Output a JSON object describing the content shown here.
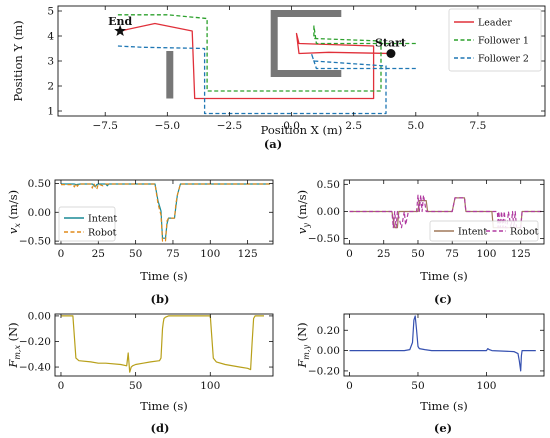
{
  "chart_data": [
    {
      "id": "a",
      "type": "line",
      "caption": "(a)",
      "xlabel": "Position X (m)",
      "ylabel": "Position Y (m)",
      "xlim": [
        -9.4,
        10.2
      ],
      "ylim": [
        0.8,
        5.2
      ],
      "xticks": [
        -7.5,
        -5.0,
        -2.5,
        0.0,
        2.5,
        5.0,
        7.5
      ],
      "xtick_labels": [
        "−7.5",
        "−5.0",
        "−2.5",
        "0.0",
        "2.5",
        "5.0",
        "7.5"
      ],
      "yticks": [
        1,
        2,
        3,
        4,
        5
      ],
      "ytick_labels": [
        "1",
        "2",
        "3",
        "4",
        "5"
      ],
      "legend": {
        "position": "top-right"
      },
      "series": [
        {
          "name": "Leader",
          "color": "#e0303a",
          "dash": "solid",
          "points": [
            [
              4.0,
              3.3
            ],
            [
              1.5,
              3.35
            ],
            [
              0.3,
              3.3
            ],
            [
              0.2,
              4.1
            ],
            [
              0.3,
              3.7
            ],
            [
              3.3,
              3.6
            ],
            [
              3.3,
              1.5
            ],
            [
              -3.9,
              1.5
            ],
            [
              -4.0,
              4.2
            ],
            [
              -5.5,
              4.5
            ],
            [
              -6.9,
              4.2
            ]
          ]
        },
        {
          "name": "Follower 1",
          "color": "#2ca02c",
          "dash": "dashed",
          "points": [
            [
              5.0,
              3.7
            ],
            [
              1.0,
              3.7
            ],
            [
              0.9,
              4.4
            ],
            [
              0.9,
              3.9
            ],
            [
              3.6,
              3.8
            ],
            [
              3.6,
              1.8
            ],
            [
              -3.4,
              1.8
            ],
            [
              -3.4,
              4.7
            ],
            [
              -5.0,
              4.85
            ],
            [
              -7.0,
              4.85
            ]
          ]
        },
        {
          "name": "Follower 2",
          "color": "#1f77b4",
          "dash": "dashed",
          "points": [
            [
              5.0,
              2.7
            ],
            [
              1.0,
              2.7
            ],
            [
              0.8,
              3.3
            ],
            [
              0.9,
              3.0
            ],
            [
              3.8,
              2.8
            ],
            [
              3.8,
              0.9
            ],
            [
              -3.5,
              0.9
            ],
            [
              -3.5,
              3.5
            ],
            [
              -6.0,
              3.55
            ],
            [
              -7.0,
              3.6
            ]
          ]
        }
      ],
      "obstacles": [
        {
          "color": "#777777",
          "points": [
            [
              -4.9,
              1.5
            ],
            [
              -4.9,
              3.4
            ]
          ]
        },
        {
          "color": "#777777",
          "points": [
            [
              2.0,
              4.9
            ],
            [
              -0.7,
              4.9
            ],
            [
              -0.7,
              2.5
            ],
            [
              2.0,
              2.5
            ]
          ]
        }
      ],
      "annotations": [
        {
          "text": "End",
          "x": -6.9,
          "y": 4.2,
          "marker": "star"
        },
        {
          "text": "Start",
          "x": 4.0,
          "y": 3.3,
          "marker": "circle"
        }
      ]
    },
    {
      "id": "b",
      "type": "line",
      "caption": "(b)",
      "xlabel": "Time (s)",
      "ylabel": "v_x (m/s)",
      "xlim": [
        -4,
        142
      ],
      "ylim": [
        -0.55,
        0.56
      ],
      "xticks": [
        0,
        25,
        50,
        75,
        100,
        125
      ],
      "yticks": [
        -0.5,
        0.0,
        0.5
      ],
      "ytick_labels": [
        "−0.50",
        "0.00",
        "0.50"
      ],
      "legend": {
        "position": "bottom-left"
      },
      "series": [
        {
          "name": "Intent",
          "color": "#1a8a95",
          "dash": "solid",
          "points": [
            [
              0,
              0.49
            ],
            [
              9,
              0.49
            ],
            [
              10,
              0.48
            ],
            [
              13,
              0.49
            ],
            [
              21,
              0.49
            ],
            [
              22,
              0.47
            ],
            [
              23,
              0.44
            ],
            [
              24,
              0.48
            ],
            [
              25,
              0.49
            ],
            [
              30,
              0.49
            ],
            [
              31,
              0.46
            ],
            [
              32,
              0.49
            ],
            [
              63,
              0.49
            ],
            [
              65,
              0.2
            ],
            [
              67,
              0.02
            ],
            [
              68,
              -0.45
            ],
            [
              70,
              -0.45
            ],
            [
              71,
              -0.2
            ],
            [
              72,
              -0.1
            ],
            [
              75,
              -0.1
            ],
            [
              76,
              -0.1
            ],
            [
              77,
              0.1
            ],
            [
              78,
              0.3
            ],
            [
              80,
              0.49
            ],
            [
              140,
              0.49
            ]
          ]
        },
        {
          "name": "Robot",
          "color": "#e08a1a",
          "dash": "dashed",
          "points": [
            [
              0,
              0.48
            ],
            [
              8,
              0.48
            ],
            [
              9,
              0.44
            ],
            [
              10,
              0.5
            ],
            [
              11,
              0.45
            ],
            [
              12,
              0.49
            ],
            [
              20,
              0.49
            ],
            [
              21,
              0.42
            ],
            [
              22,
              0.5
            ],
            [
              24,
              0.4
            ],
            [
              25,
              0.49
            ],
            [
              28,
              0.46
            ],
            [
              30,
              0.49
            ],
            [
              63,
              0.49
            ],
            [
              65,
              0.15
            ],
            [
              67,
              -0.05
            ],
            [
              68,
              -0.5
            ],
            [
              70,
              -0.5
            ],
            [
              71,
              -0.15
            ],
            [
              72,
              -0.1
            ],
            [
              76,
              -0.1
            ],
            [
              77,
              0.15
            ],
            [
              78,
              0.3
            ],
            [
              80,
              0.49
            ],
            [
              140,
              0.49
            ]
          ]
        }
      ]
    },
    {
      "id": "c",
      "type": "line",
      "caption": "(c)",
      "xlabel": "Time (s)",
      "ylabel": "v_y (m/s)",
      "xlim": [
        -4,
        142
      ],
      "ylim": [
        -0.6,
        0.58
      ],
      "xticks": [
        0,
        25,
        50,
        75,
        100,
        125
      ],
      "yticks": [
        -0.5,
        0.0,
        0.5
      ],
      "ytick_labels": [
        "−0.50",
        "0.00",
        "0.50"
      ],
      "legend": {
        "position": "bottom-right"
      },
      "series": [
        {
          "name": "Intent",
          "color": "#a0785a",
          "dash": "solid",
          "points": [
            [
              0,
              0.0
            ],
            [
              31,
              0.0
            ],
            [
              32,
              -0.15
            ],
            [
              33,
              -0.3
            ],
            [
              35,
              -0.3
            ],
            [
              36,
              0.0
            ],
            [
              50,
              0.0
            ],
            [
              51,
              0.2
            ],
            [
              56,
              0.2
            ],
            [
              57,
              0.0
            ],
            [
              75,
              0.0
            ],
            [
              77,
              0.25
            ],
            [
              84,
              0.25
            ],
            [
              85,
              0.0
            ],
            [
              104,
              0.0
            ],
            [
              105,
              -0.3
            ],
            [
              125,
              -0.3
            ],
            [
              126,
              0.0
            ],
            [
              140,
              0.0
            ]
          ]
        },
        {
          "name": "Robot",
          "color": "#b03aa0",
          "dash": "dashed",
          "points": [
            [
              0,
              0.0
            ],
            [
              31,
              0.0
            ],
            [
              32,
              -0.3
            ],
            [
              33,
              0.0
            ],
            [
              34,
              -0.3
            ],
            [
              35,
              0.0
            ],
            [
              38,
              -0.3
            ],
            [
              40,
              0.0
            ],
            [
              41,
              -0.25
            ],
            [
              43,
              0.0
            ],
            [
              49,
              0.0
            ],
            [
              50,
              0.3
            ],
            [
              51,
              0.0
            ],
            [
              52,
              0.3
            ],
            [
              53,
              0.0
            ],
            [
              54,
              0.3
            ],
            [
              56,
              0.0
            ],
            [
              75,
              0.0
            ],
            [
              77,
              0.25
            ],
            [
              84,
              0.25
            ],
            [
              85,
              0.0
            ],
            [
              108,
              0.0
            ],
            [
              108.5,
              -0.3
            ],
            [
              109,
              0.0
            ],
            [
              110,
              -0.3
            ],
            [
              111,
              0.0
            ],
            [
              112,
              -0.3
            ],
            [
              113,
              0.0
            ],
            [
              114,
              -0.3
            ],
            [
              115,
              -0.3
            ],
            [
              116,
              0.0
            ],
            [
              118,
              -0.3
            ],
            [
              119,
              0.0
            ],
            [
              120,
              -0.3
            ],
            [
              121,
              0.0
            ],
            [
              122,
              -0.3
            ],
            [
              125,
              -0.3
            ],
            [
              126,
              0.0
            ],
            [
              140,
              0.0
            ]
          ]
        }
      ]
    },
    {
      "id": "d",
      "type": "line",
      "caption": "(d)",
      "xlabel": "Time (s)",
      "ylabel": "F_m,x (N)",
      "xlim": [
        -4,
        142
      ],
      "ylim": [
        -0.47,
        0.015
      ],
      "xticks": [
        0,
        50,
        100
      ],
      "yticks": [
        0.0,
        -0.2,
        -0.4
      ],
      "ytick_labels": [
        "0.00",
        "−0.20",
        "−0.40"
      ],
      "series": [
        {
          "name": "",
          "color": "#b8a01a",
          "dash": "solid",
          "points": [
            [
              0,
              0.0
            ],
            [
              8,
              0.0
            ],
            [
              10,
              -0.33
            ],
            [
              12,
              -0.35
            ],
            [
              20,
              -0.36
            ],
            [
              25,
              -0.37
            ],
            [
              30,
              -0.37
            ],
            [
              40,
              -0.38
            ],
            [
              44,
              -0.39
            ],
            [
              45,
              -0.29
            ],
            [
              46,
              -0.44
            ],
            [
              47,
              -0.4
            ],
            [
              48,
              -0.39
            ],
            [
              50,
              -0.38
            ],
            [
              55,
              -0.37
            ],
            [
              60,
              -0.36
            ],
            [
              66,
              -0.35
            ],
            [
              67,
              -0.33
            ],
            [
              68,
              -0.1
            ],
            [
              68.5,
              -0.05
            ],
            [
              69,
              -0.02
            ],
            [
              70,
              -0.01
            ],
            [
              72,
              0.0
            ],
            [
              80,
              0.0
            ],
            [
              90,
              0.0
            ],
            [
              100,
              0.0
            ],
            [
              102,
              -0.33
            ],
            [
              104,
              -0.36
            ],
            [
              110,
              -0.38
            ],
            [
              120,
              -0.4
            ],
            [
              125,
              -0.41
            ],
            [
              127,
              -0.42
            ],
            [
              128,
              -0.21
            ],
            [
              129,
              -0.02
            ],
            [
              130,
              0.0
            ],
            [
              136,
              0.0
            ]
          ]
        }
      ]
    },
    {
      "id": "e",
      "type": "line",
      "caption": "(e)",
      "xlabel": "Time (s)",
      "ylabel": "F_m,y (N)",
      "xlim": [
        -4,
        142
      ],
      "ylim": [
        -0.25,
        0.36
      ],
      "xticks": [
        0,
        50,
        100
      ],
      "yticks": [
        -0.2,
        0.0,
        0.2
      ],
      "ytick_labels": [
        "−0.20",
        "0.00",
        "0.20"
      ],
      "series": [
        {
          "name": "",
          "color": "#3550b0",
          "dash": "solid",
          "points": [
            [
              0,
              0.0
            ],
            [
              40,
              0.0
            ],
            [
              44,
              0.01
            ],
            [
              46,
              0.08
            ],
            [
              47,
              0.3
            ],
            [
              48,
              0.34
            ],
            [
              49,
              0.2
            ],
            [
              50,
              0.04
            ],
            [
              51,
              0.02
            ],
            [
              55,
              0.01
            ],
            [
              60,
              0.0
            ],
            [
              100,
              0.0
            ],
            [
              101,
              0.02
            ],
            [
              102,
              0.01
            ],
            [
              104,
              0.0
            ],
            [
              120,
              -0.01
            ],
            [
              123,
              -0.03
            ],
            [
              124,
              -0.1
            ],
            [
              125,
              -0.2
            ],
            [
              125.5,
              -0.05
            ],
            [
              126,
              0.0
            ],
            [
              136,
              0.0
            ]
          ]
        }
      ]
    }
  ]
}
